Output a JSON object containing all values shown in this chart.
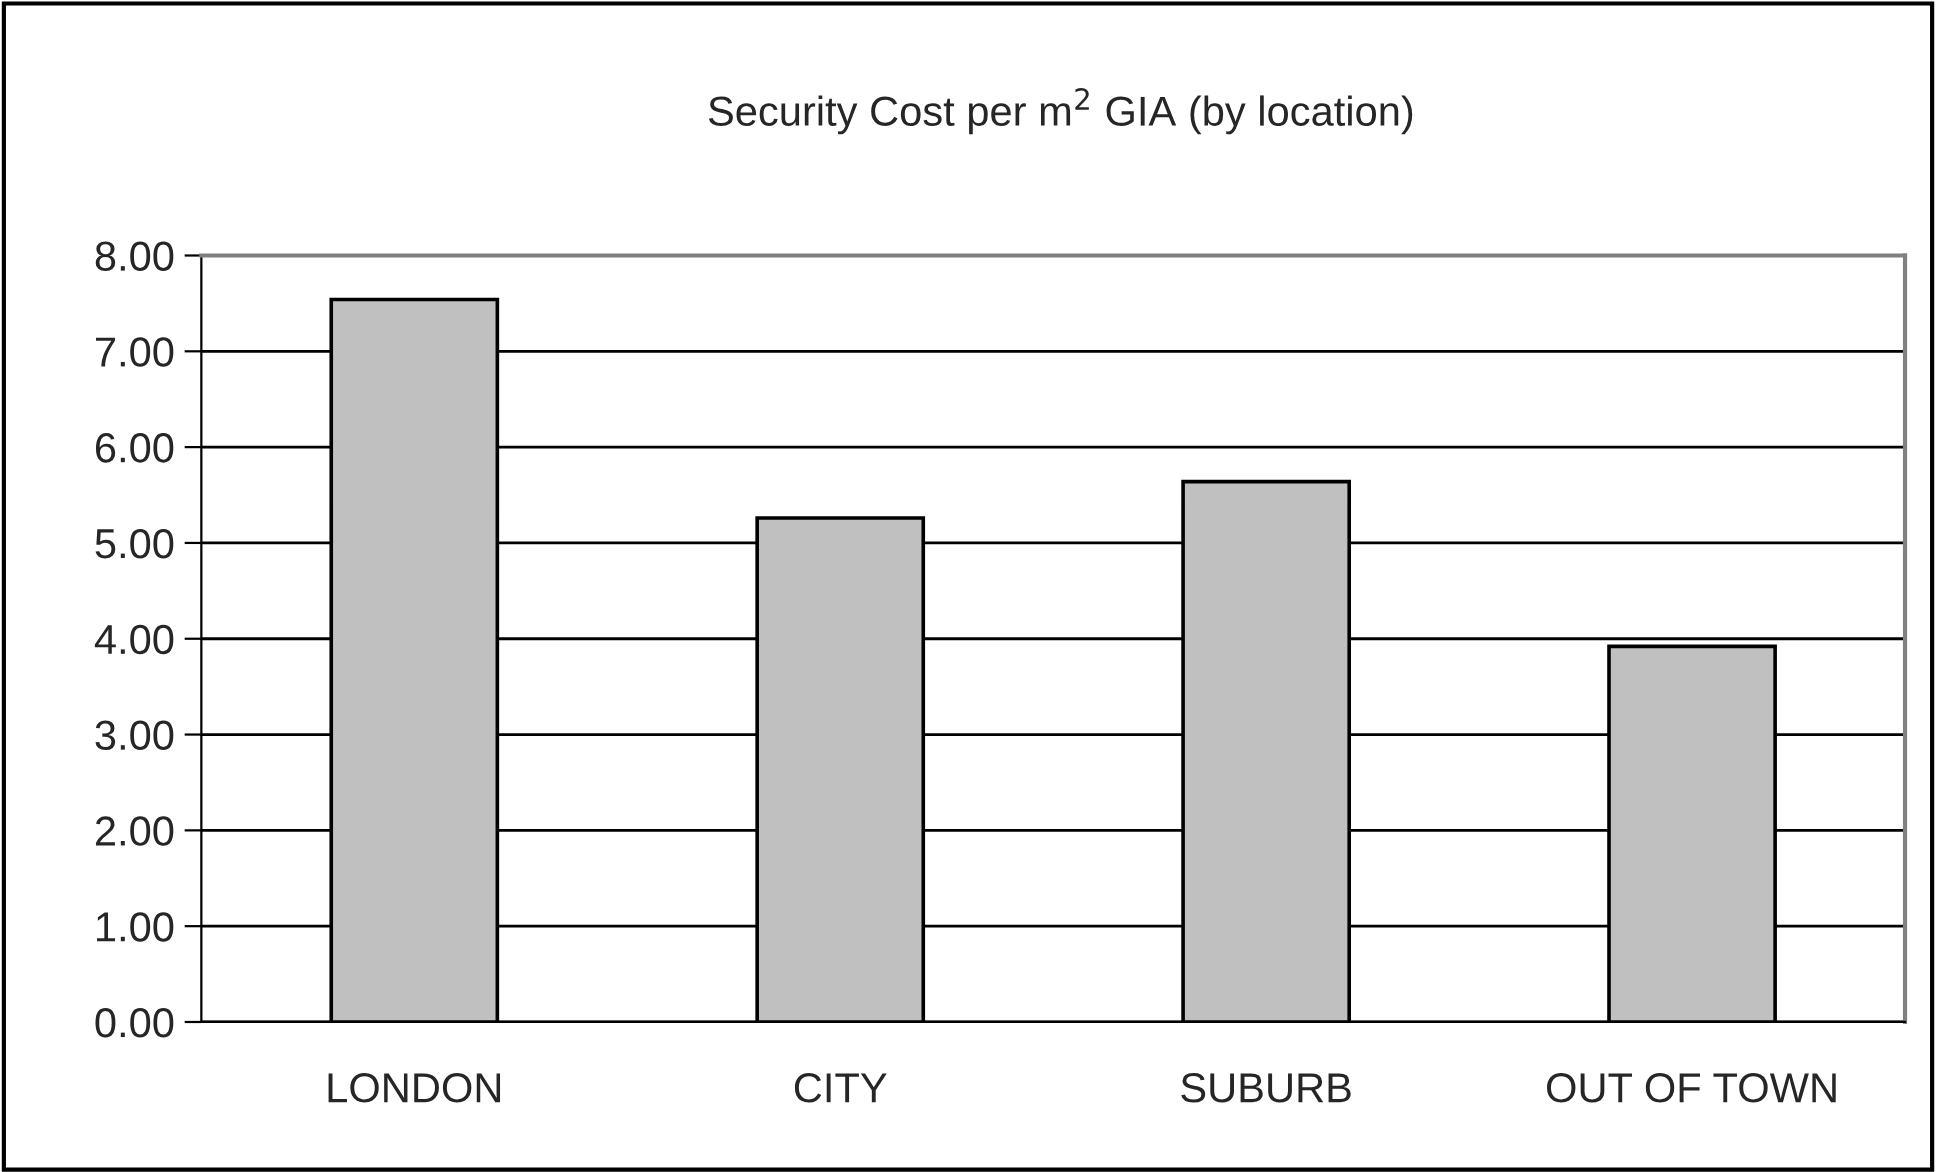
{
  "chart_data": {
    "type": "bar",
    "title": "Security Cost per m$^{2}$ GIA (by location)",
    "categories": [
      "LONDON",
      "CITY",
      "SUBURB",
      "OUT OF TOWN"
    ],
    "values": [
      7.54,
      5.26,
      5.64,
      3.92
    ],
    "color": "#c0c0c0",
    "ylim": [
      0,
      8
    ],
    "yticks": [
      {
        "value": 0,
        "label": "0.00"
      },
      {
        "value": 1,
        "label": "1.00"
      },
      {
        "value": 2,
        "label": "2.00"
      },
      {
        "value": 3,
        "label": "3.00"
      },
      {
        "value": 4,
        "label": "4.00"
      },
      {
        "value": 5,
        "label": "5.00"
      },
      {
        "value": 6,
        "label": "6.00"
      },
      {
        "value": 7,
        "label": "7.00"
      },
      {
        "value": 8,
        "label": "8.00"
      }
    ],
    "grid": "y",
    "legend": false
  }
}
